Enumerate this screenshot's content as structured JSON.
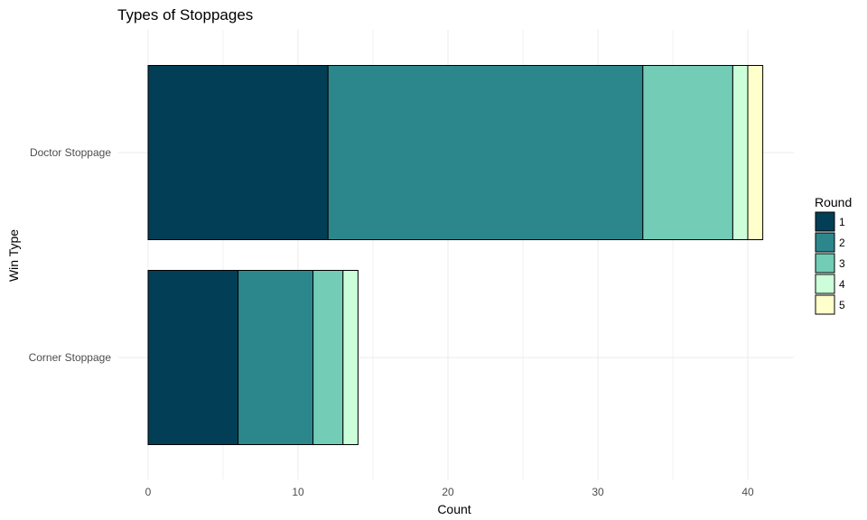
{
  "chart_data": {
    "type": "bar",
    "orientation": "horizontal",
    "stacked": true,
    "title": "Types of Stoppages",
    "xlabel": "Count",
    "ylabel": "Win Type",
    "categories": [
      "Doctor Stoppage",
      "Corner Stoppage"
    ],
    "xlim": [
      0,
      43
    ],
    "xticks": [
      0,
      10,
      20,
      30,
      40
    ],
    "grid": true,
    "legend": {
      "title": "Round",
      "position": "right"
    },
    "series": [
      {
        "name": "1",
        "color": "#023e55",
        "values": [
          12,
          6
        ]
      },
      {
        "name": "2",
        "color": "#2c878d",
        "values": [
          21,
          5
        ]
      },
      {
        "name": "3",
        "color": "#72ccb6",
        "values": [
          6,
          2
        ]
      },
      {
        "name": "4",
        "color": "#ccffd9",
        "values": [
          1,
          1
        ]
      },
      {
        "name": "5",
        "color": "#ffffcc",
        "values": [
          1,
          0
        ]
      }
    ]
  }
}
